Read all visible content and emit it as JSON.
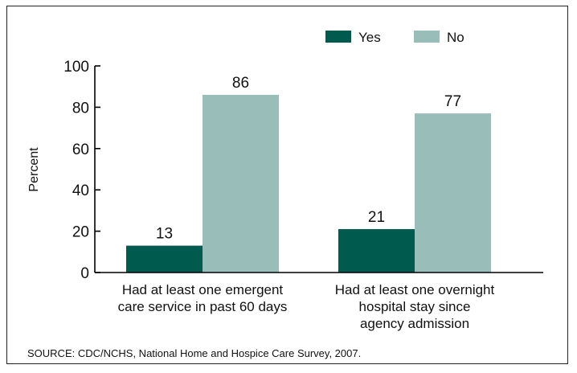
{
  "chart_data": {
    "type": "bar",
    "categories": [
      [
        "Had at least one emergent",
        "care service in past 60 days"
      ],
      [
        "Had at least one overnight",
        "hospital stay since",
        "agency admission"
      ]
    ],
    "series": [
      {
        "name": "Yes",
        "values": [
          13,
          21
        ],
        "color": "#005a4e"
      },
      {
        "name": "No",
        "values": [
          86,
          77
        ],
        "color": "#99bdb9"
      }
    ],
    "ylabel": "Percent",
    "ylim": [
      0,
      100
    ],
    "yticks": [
      0,
      20,
      40,
      60,
      80,
      100
    ],
    "legend": "top-right",
    "grid": false,
    "data_labels": true
  },
  "source": "SOURCE: CDC/NCHS, National Home and Hospice Care Survey, 2007."
}
